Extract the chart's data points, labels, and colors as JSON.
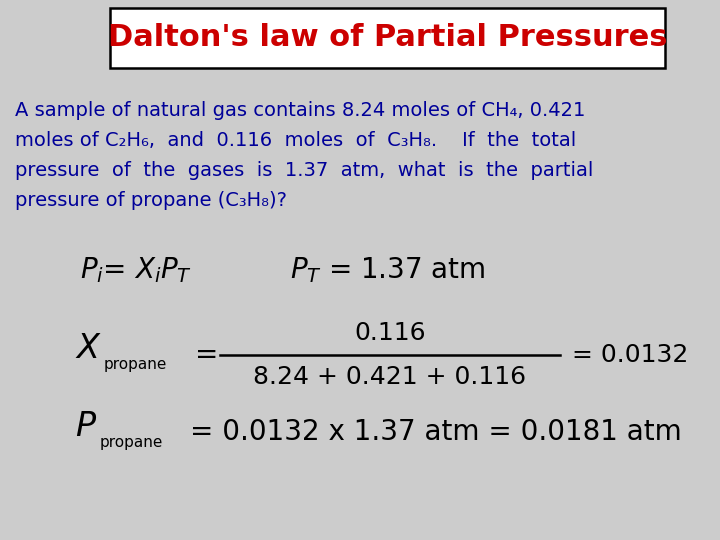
{
  "title": "Dalton's law of Partial Pressures",
  "title_color": "#CC0000",
  "title_fontsize": 22,
  "bg_color": "#CCCCCC",
  "body_text_color": "#000099",
  "equation_color": "#000000",
  "body_fontsize": 14,
  "eq_fontsize": 18,
  "para_lines": [
    "A sample of natural gas contains 8.24 moles of CH₄, 0.421",
    "moles of C₂H₆,  and  0.116  moles  of  C₃H₈.    If  the  total",
    "pressure  of  the  gases  is  1.37  atm,  what  is  the  partial",
    "pressure of propane (C₃H₈)?"
  ],
  "frac_num": "0.116",
  "frac_den": "8.24 + 0.421 + 0.116",
  "frac_result": "= 0.0132",
  "final_eq": "= 0.0132 x 1.37 atm = 0.0181 atm"
}
